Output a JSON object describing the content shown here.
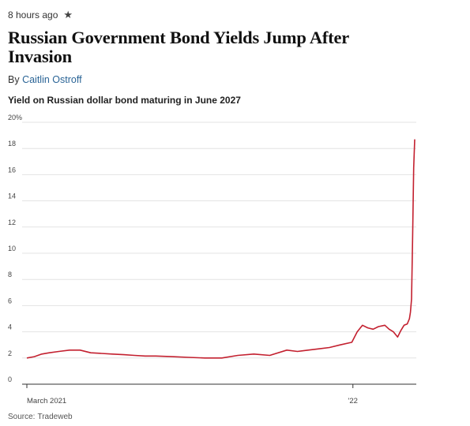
{
  "article": {
    "timestamp": "8 hours ago",
    "star_icon": "star-icon",
    "headline": "Russian Government Bond Yields Jump After Invasion",
    "byline_prefix": "By",
    "author": "Caitlin Ostroff",
    "source_label": "Source:",
    "source_name": "Tradeweb"
  },
  "chart_data": {
    "type": "line",
    "title": "Yield on Russian dollar bond maturing in June 2027",
    "xlabel": "",
    "ylabel": "",
    "x_tick_labels": [
      "March 2021",
      "'22"
    ],
    "y_tick_labels": [
      "0",
      "2",
      "4",
      "6",
      "8",
      "10",
      "12",
      "14",
      "16",
      "18",
      "20%"
    ],
    "ylim": [
      0,
      20
    ],
    "grid": true,
    "legend": "none",
    "colors": {
      "line": "#c3202f",
      "grid": "#e3e3e3",
      "axis": "#333333"
    },
    "series": [
      {
        "x": [
          "2021-03-01",
          "2021-03-08",
          "2021-03-15",
          "2021-03-22",
          "2021-03-31",
          "2021-04-10",
          "2021-04-20",
          "2021-04-30",
          "2021-05-10",
          "2021-05-20",
          "2021-05-31",
          "2021-06-10",
          "2021-06-20",
          "2021-06-30",
          "2021-07-15",
          "2021-07-31",
          "2021-08-15",
          "2021-08-31",
          "2021-09-15",
          "2021-09-30",
          "2021-10-15",
          "2021-10-31",
          "2021-11-10",
          "2021-11-20",
          "2021-11-30",
          "2021-12-10",
          "2021-12-20",
          "2021-12-31",
          "2022-01-05",
          "2022-01-10",
          "2022-01-15",
          "2022-01-20",
          "2022-01-25",
          "2022-01-31",
          "2022-02-04",
          "2022-02-08",
          "2022-02-12",
          "2022-02-15",
          "2022-02-18",
          "2022-02-21",
          "2022-02-23",
          "2022-02-24",
          "2022-02-25",
          "2022-02-26",
          "2022-02-27",
          "2022-02-28"
        ],
        "y": [
          2.0,
          2.1,
          2.3,
          2.4,
          2.5,
          2.6,
          2.6,
          2.4,
          2.35,
          2.3,
          2.25,
          2.2,
          2.15,
          2.15,
          2.1,
          2.05,
          2.0,
          2.0,
          2.2,
          2.3,
          2.2,
          2.6,
          2.5,
          2.6,
          2.7,
          2.8,
          3.0,
          3.2,
          4.0,
          4.5,
          4.3,
          4.2,
          4.4,
          4.5,
          4.2,
          4.0,
          3.6,
          4.1,
          4.5,
          4.6,
          5.0,
          5.5,
          6.5,
          11.0,
          16.5,
          18.7
        ]
      }
    ]
  }
}
